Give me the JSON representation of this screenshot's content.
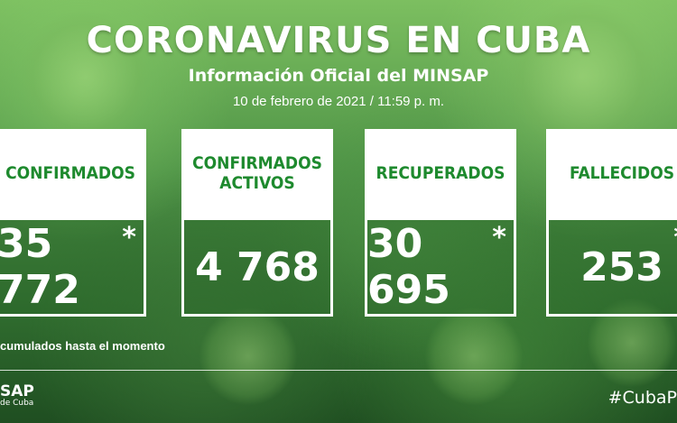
{
  "header": {
    "title": "CORONAVIRUS EN CUBA",
    "subtitle": "Información Oficial del MINSAP",
    "date": "10 de febrero de 2021 / 11:59 p. m."
  },
  "cards": [
    {
      "label": "CONFIRMADOS",
      "value": "35 772",
      "star": "*"
    },
    {
      "label": "CONFIRMADOS\nACTIVOS",
      "value": "4 768",
      "star": ""
    },
    {
      "label": "RECUPERADOS",
      "value": "30 695",
      "star": "*"
    },
    {
      "label": "FALLECIDOS",
      "value": "253",
      "star": "*"
    }
  ],
  "footer": {
    "note": "cumulados hasta el momento",
    "logo": "SAP",
    "logo_sub": "de Cuba",
    "hashtag": "#CubaP"
  },
  "colors": {
    "label_green": "#1e8a2e",
    "background": "#4f9447"
  }
}
